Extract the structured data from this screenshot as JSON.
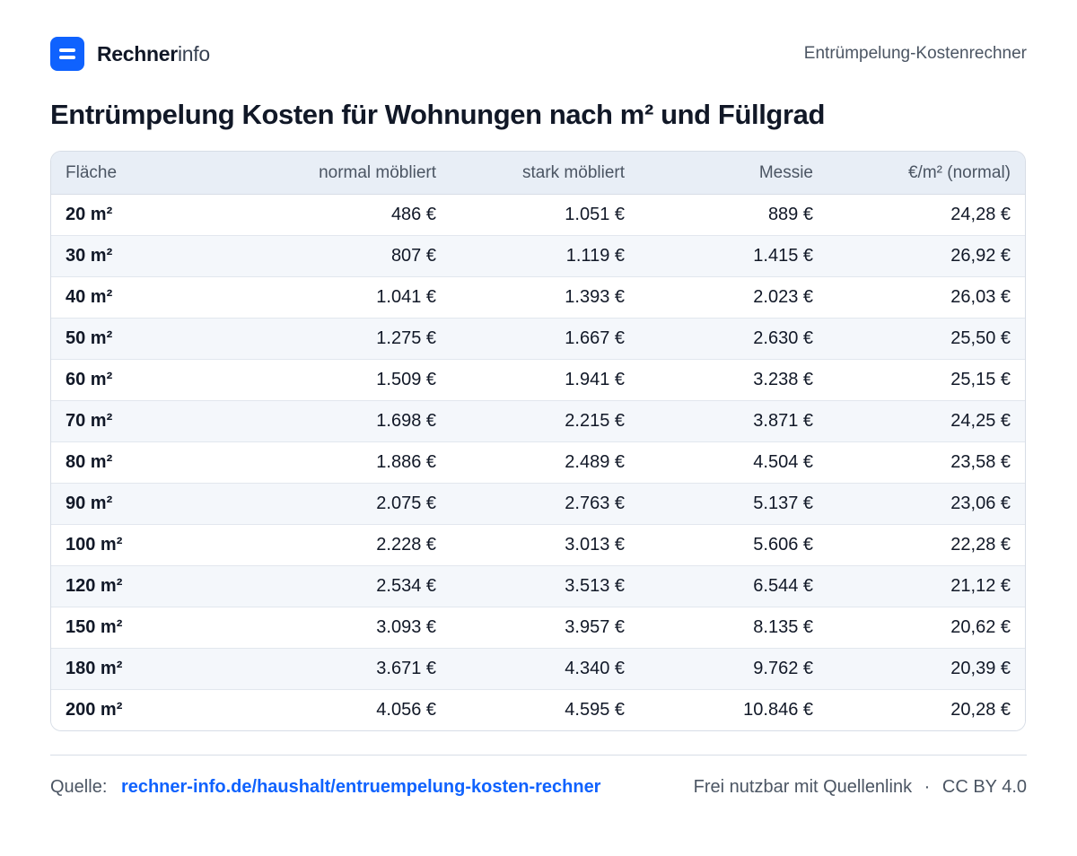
{
  "header": {
    "brand_bold": "Rechner",
    "brand_light": "info",
    "logo_icon": "menu-lines-icon",
    "accent_color": "#0f62fe",
    "right_label": "Entrümpelung-Kostenrechner"
  },
  "title": "Entrümpelung Kosten für Wohnungen nach m² und Füllgrad",
  "table": {
    "columns": [
      "Fläche",
      "normal möbliert",
      "stark möbliert",
      "Messie",
      "€/m² (normal)"
    ],
    "rows": [
      [
        "20 m²",
        "486 €",
        "1.051 €",
        "889 €",
        "24,28 €"
      ],
      [
        "30 m²",
        "807 €",
        "1.119 €",
        "1.415 €",
        "26,92 €"
      ],
      [
        "40 m²",
        "1.041 €",
        "1.393 €",
        "2.023 €",
        "26,03 €"
      ],
      [
        "50 m²",
        "1.275 €",
        "1.667 €",
        "2.630 €",
        "25,50 €"
      ],
      [
        "60 m²",
        "1.509 €",
        "1.941 €",
        "3.238 €",
        "25,15 €"
      ],
      [
        "70 m²",
        "1.698 €",
        "2.215 €",
        "3.871 €",
        "24,25 €"
      ],
      [
        "80 m²",
        "1.886 €",
        "2.489 €",
        "4.504 €",
        "23,58 €"
      ],
      [
        "90 m²",
        "2.075 €",
        "2.763 €",
        "5.137 €",
        "23,06 €"
      ],
      [
        "100 m²",
        "2.228 €",
        "3.013 €",
        "5.606 €",
        "22,28 €"
      ],
      [
        "120 m²",
        "2.534 €",
        "3.513 €",
        "6.544 €",
        "21,12 €"
      ],
      [
        "150 m²",
        "3.093 €",
        "3.957 €",
        "8.135 €",
        "20,62 €"
      ],
      [
        "180 m²",
        "3.671 €",
        "4.340 €",
        "9.762 €",
        "20,39 €"
      ],
      [
        "200 m²",
        "4.056 €",
        "4.595 €",
        "10.846 €",
        "20,28 €"
      ]
    ]
  },
  "footer": {
    "source_label": "Quelle:",
    "source_link": "rechner-info.de/haushalt/entruempelung-kosten-rechner",
    "license_text": "Frei nutzbar mit Quellenlink",
    "separator": "·",
    "license": "CC BY 4.0"
  }
}
